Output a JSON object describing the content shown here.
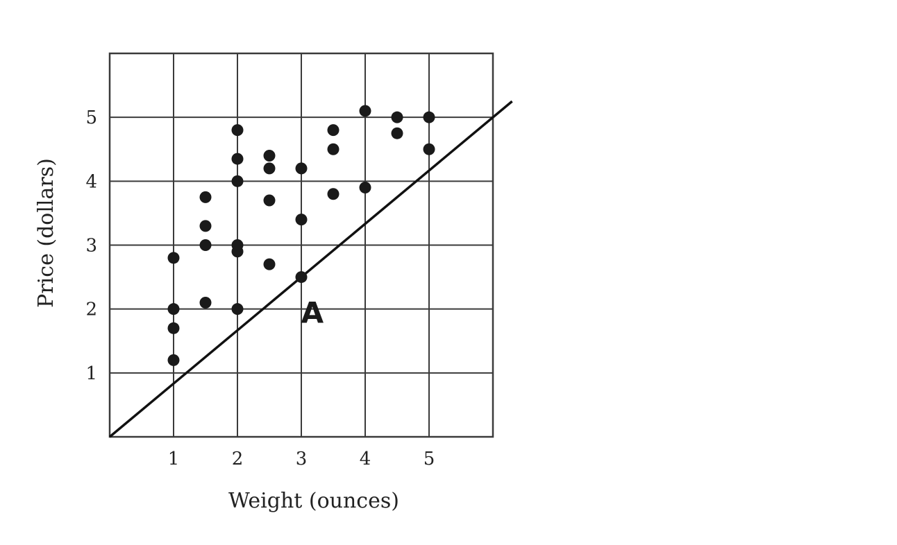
{
  "chart_data": {
    "type": "scatter",
    "xlabel": "Weight (ounces)",
    "ylabel": "Price (dollars)",
    "xlim": [
      0,
      6
    ],
    "ylim": [
      0,
      6
    ],
    "x_ticks": [
      1,
      2,
      3,
      4,
      5
    ],
    "y_ticks": [
      1,
      2,
      3,
      4,
      5
    ],
    "grid": true,
    "series": [
      {
        "points": [
          {
            "x": 1,
            "y": 1.2
          },
          {
            "x": 1,
            "y": 1.7
          },
          {
            "x": 1,
            "y": 2.0
          },
          {
            "x": 1,
            "y": 2.8
          },
          {
            "x": 1.5,
            "y": 2.1
          },
          {
            "x": 1.5,
            "y": 3.0
          },
          {
            "x": 1.5,
            "y": 3.3
          },
          {
            "x": 1.5,
            "y": 3.75
          },
          {
            "x": 2,
            "y": 2.0
          },
          {
            "x": 2,
            "y": 2.9
          },
          {
            "x": 2,
            "y": 3.0
          },
          {
            "x": 2,
            "y": 4.0
          },
          {
            "x": 2,
            "y": 4.35
          },
          {
            "x": 2,
            "y": 4.8
          },
          {
            "x": 2.5,
            "y": 2.7
          },
          {
            "x": 2.5,
            "y": 3.7
          },
          {
            "x": 2.5,
            "y": 4.2
          },
          {
            "x": 2.5,
            "y": 4.4
          },
          {
            "x": 3,
            "y": 2.5
          },
          {
            "x": 3,
            "y": 3.4
          },
          {
            "x": 3,
            "y": 4.2
          },
          {
            "x": 3.5,
            "y": 3.8
          },
          {
            "x": 3.5,
            "y": 4.5
          },
          {
            "x": 3.5,
            "y": 4.8
          },
          {
            "x": 4,
            "y": 3.9
          },
          {
            "x": 4,
            "y": 5.1
          },
          {
            "x": 4.5,
            "y": 4.75
          },
          {
            "x": 4.5,
            "y": 5.0
          },
          {
            "x": 5,
            "y": 4.5
          },
          {
            "x": 5,
            "y": 5.0
          }
        ]
      }
    ],
    "lines": [
      {
        "label": "A",
        "start": {
          "x": 0,
          "y": 0
        },
        "end": {
          "x": 6.3,
          "y": 5.25
        }
      }
    ],
    "annotations": [
      {
        "text": "A",
        "x": 3.3,
        "y": 2.0
      }
    ]
  }
}
